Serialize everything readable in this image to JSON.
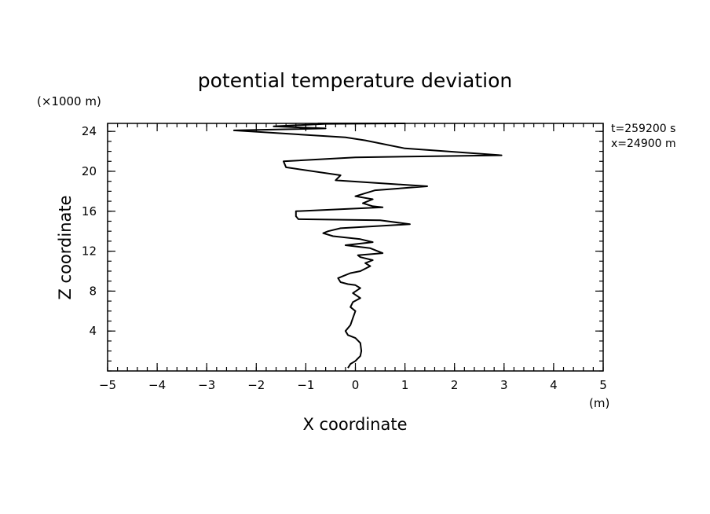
{
  "chart_data": {
    "type": "line",
    "title": "potential temperature deviation",
    "xlabel": "X coordinate",
    "ylabel": "Z coordinate",
    "x_unit": "(m)",
    "y_unit": "(×1000 m)",
    "annotations": [
      "t=259200 s",
      "x=24900 m"
    ],
    "xlim": [
      -5,
      5
    ],
    "ylim": [
      0,
      24.8
    ],
    "x_ticks": [
      -5,
      -4,
      -3,
      -2,
      -1,
      0,
      1,
      2,
      3,
      4,
      5
    ],
    "x_tick_labels": [
      "−5",
      "−4",
      "−3",
      "−2",
      "−1",
      "0",
      "1",
      "2",
      "3",
      "4",
      "5"
    ],
    "y_ticks": [
      4,
      8,
      12,
      16,
      20,
      24
    ],
    "y_tick_labels": [
      "4",
      "8",
      "12",
      "16",
      "20",
      "24"
    ],
    "grid": false,
    "series": [
      {
        "x": [
          -0.15,
          -0.1,
          0.0,
          0.1,
          0.12,
          0.1,
          0.0,
          -0.15,
          -0.2,
          -0.1,
          -0.05,
          0.0,
          -0.1,
          -0.05,
          0.1,
          -0.05,
          0.1,
          0.0,
          -0.15,
          -0.3,
          -0.35,
          -0.25,
          -0.1,
          0.1,
          0.3,
          0.2,
          0.35,
          0.1,
          0.05,
          0.55,
          0.3,
          -0.2,
          0.35,
          0.1,
          -0.45,
          -0.65,
          -0.55,
          -0.3,
          1.1,
          0.5,
          -1.15,
          -1.2,
          -1.2,
          0.55,
          0.35,
          0.15,
          0.35,
          0.0,
          0.4,
          1.45,
          -0.4,
          -0.3,
          -1.4,
          -1.45,
          0.0,
          2.95,
          1.0,
          0.2,
          -0.2,
          -2.45,
          -0.6,
          -1.65,
          -0.6,
          1.0,
          -0.5,
          -0.45,
          0.5,
          0.5,
          -0.3,
          -0.75,
          -0.7
        ],
        "y": [
          0.3,
          0.7,
          1.0,
          1.5,
          2.0,
          2.8,
          3.3,
          3.6,
          4.0,
          4.6,
          5.3,
          6.0,
          6.4,
          6.9,
          7.3,
          7.8,
          8.3,
          8.6,
          8.7,
          8.9,
          9.3,
          9.5,
          9.8,
          10.0,
          10.5,
          10.8,
          11.1,
          11.4,
          11.6,
          11.8,
          12.3,
          12.6,
          12.9,
          13.2,
          13.5,
          13.8,
          14.0,
          14.3,
          14.7,
          15.1,
          15.2,
          15.5,
          16.0,
          16.4,
          16.5,
          16.8,
          17.2,
          17.5,
          18.1,
          18.5,
          19.1,
          19.6,
          20.4,
          21.0,
          21.4,
          21.6,
          22.3,
          23.1,
          23.4,
          24.1,
          24.3,
          24.5,
          24.75,
          24.8,
          24.8,
          24.8,
          24.8,
          24.8,
          24.8,
          24.8,
          24.8
        ]
      }
    ]
  }
}
